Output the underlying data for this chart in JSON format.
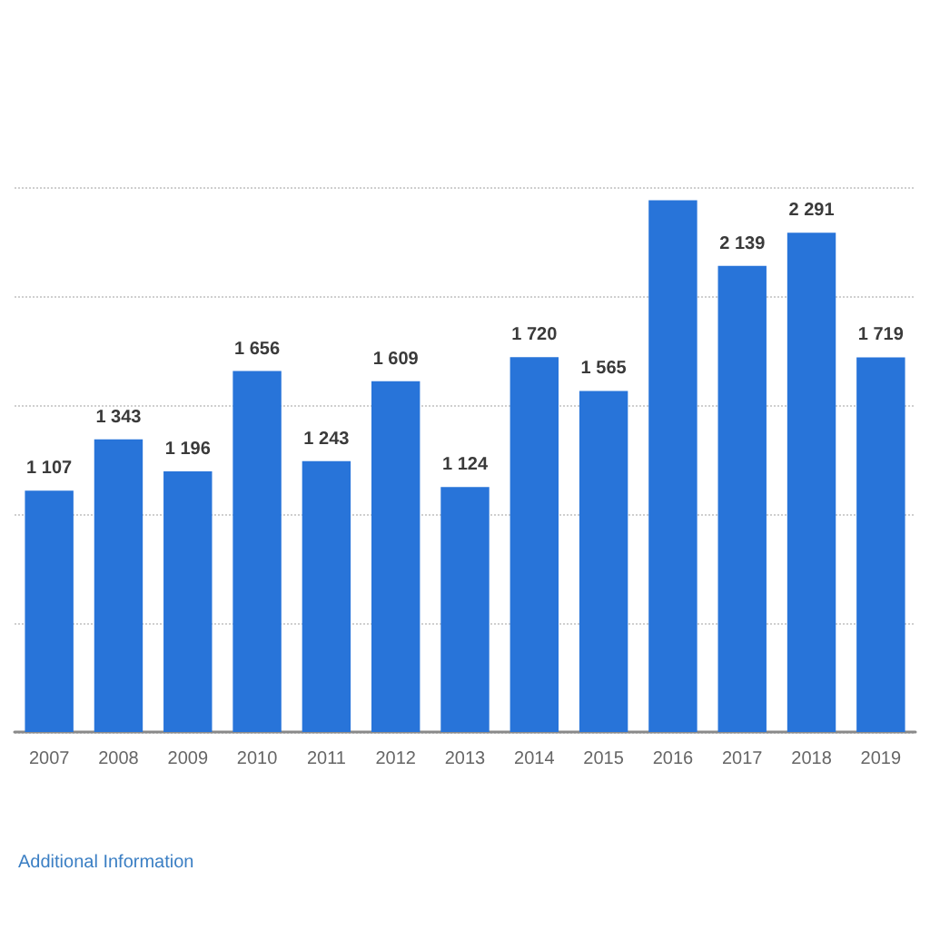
{
  "chart_data": {
    "type": "bar",
    "categories": [
      "2007",
      "2008",
      "2009",
      "2010",
      "2011",
      "2012",
      "2013",
      "2014",
      "2015",
      "2016",
      "2017",
      "2018",
      "2019"
    ],
    "values": [
      1107,
      1343,
      1196,
      1656,
      1243,
      1609,
      1124,
      1720,
      1565,
      2440,
      2139,
      2291,
      1719
    ],
    "value_labels": [
      "1 107",
      "1 343",
      "1 196",
      "1 656",
      "1 243",
      "1 609",
      "1 124",
      "1 720",
      "1 565",
      null,
      "2 139",
      "2 291",
      "1 719"
    ],
    "color": "#2874d9",
    "ylim": [
      0,
      2500
    ],
    "yticks": [
      {
        "value": 0,
        "label": null
      },
      {
        "value": 500,
        "label": null
      },
      {
        "value": 1000,
        "label": null
      },
      {
        "value": 1500,
        "label": null
      },
      {
        "value": 2000,
        "label": null
      },
      {
        "value": 2500,
        "label": null
      }
    ],
    "tick_labels": "x",
    "grid": "y",
    "annotations": [
      "Additional Information"
    ]
  }
}
